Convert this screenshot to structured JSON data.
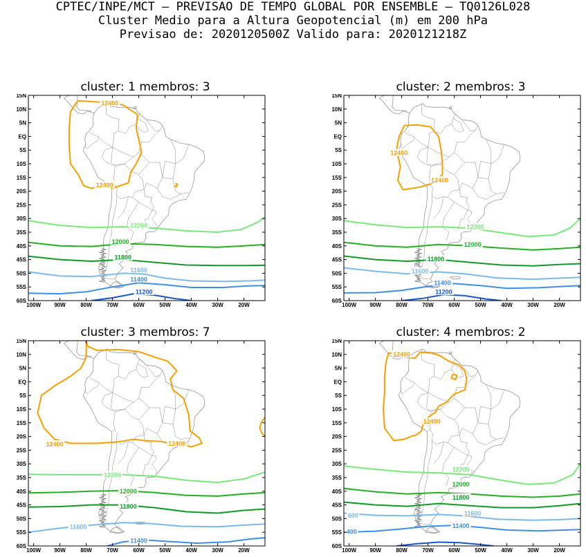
{
  "header": {
    "line1": "CPTEC/INPE/MCT – PREVISAO DE TEMPO GLOBAL POR ENSEMBLE – TQ0126L028",
    "line2": "Cluster Medio para a Altura Geopotencial (m) em 200 hPa",
    "line3": "Previsao de: 2020120500Z    Valido para: 2020121218Z"
  },
  "axes": {
    "lat_labels": [
      "15N",
      "10N",
      "5N",
      "EQ",
      "5S",
      "10S",
      "15S",
      "20S",
      "25S",
      "30S",
      "35S",
      "40S",
      "45S",
      "50S",
      "55S",
      "60S"
    ],
    "lon_labels": [
      "100W",
      "90W",
      "80W",
      "70W",
      "60W",
      "50W",
      "40W",
      "30W",
      "20W"
    ]
  },
  "colors": {
    "c12400": "#f5a000",
    "c12200": "#78e878",
    "c12000": "#22b022",
    "c11800": "#0e9a28",
    "c11600": "#7ab8ee",
    "c11400": "#3c8ee6",
    "c11200": "#1a56c8",
    "coast": "#888888"
  },
  "panels": [
    {
      "title": "cluster:  1   membros:  3",
      "labels": {
        "c12400a": "12400",
        "c12400b": "12400",
        "c12200": "12200",
        "c12000": "12000",
        "c11800": "11800",
        "c11600": "11600",
        "c11400": "11400",
        "c11200": "11200"
      }
    },
    {
      "title": "cluster:  2   membros:  3",
      "labels": {
        "c12400a": "12400",
        "c12400b": "12400",
        "c12200": "12200",
        "c12000": "12000",
        "c11800": "11800",
        "c11600": "11600",
        "c11400": "11400",
        "c11200": "11200"
      }
    },
    {
      "title": "cluster:  3   membros:  7",
      "labels": {
        "c12400a": "12400",
        "c12400b": "12400",
        "c12200": "12200",
        "c12000": "12000",
        "c11800": "11800",
        "c11600": "11600",
        "c11400": "11400"
      }
    },
    {
      "title": "cluster:  4   membros:  2",
      "labels": {
        "c12400a": "12400",
        "c12400b": "12400",
        "c12200": "12200",
        "c12000": "12000",
        "c11800": "11800",
        "c11600": "11600",
        "c11600b": "600",
        "c11400": "11400",
        "c11400b": "400"
      }
    }
  ]
}
